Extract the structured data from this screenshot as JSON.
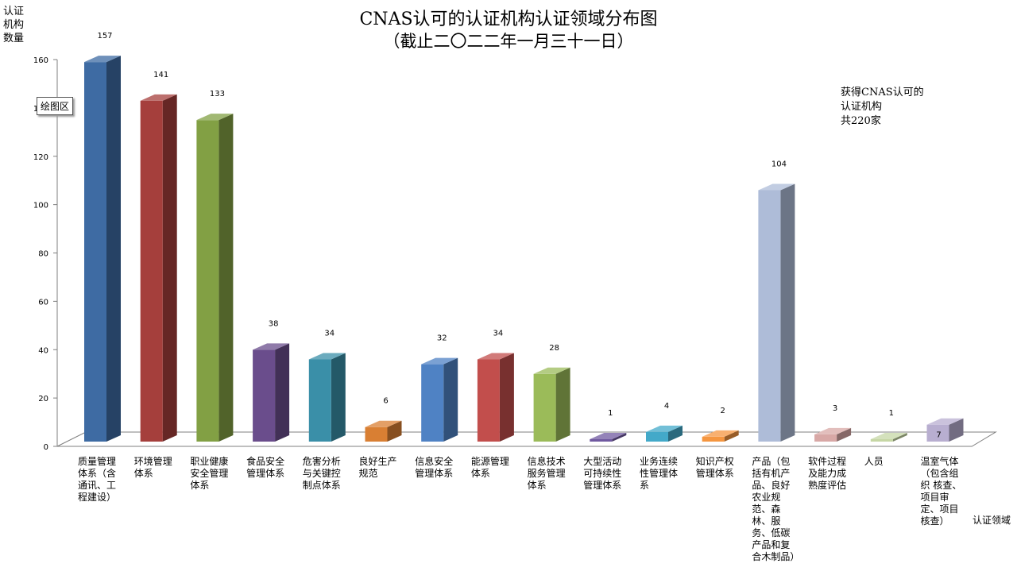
{
  "chart_data": {
    "type": "bar",
    "title": "CNAS认可的认证机构认证领域分布图",
    "subtitle": "（截止二〇二二年一月三十一日）",
    "ylabel": "认证\n机构\n数量",
    "xlabel": "认证领域",
    "ylim": [
      0,
      160
    ],
    "yticks": [
      0,
      20,
      40,
      60,
      80,
      100,
      120,
      140,
      160
    ],
    "grid": false,
    "categories": [
      "质量管理体系（含通讯、工程建设）",
      "环境管理体系",
      "职业健康安全管理体系",
      "食品安全管理体系",
      "危害分析与关键控制点体系",
      "良好生产规范",
      "信息安全管理体系",
      "能源管理体系",
      "信息技术服务管理体系",
      "大型活动可持续性管理体系",
      "业务连续性管理体系",
      "知识产权管理体系",
      "产品（包括有机产品、良好农业规范、森林、服务、低碳产品和复合木制品）",
      "软件过程及能力成熟度评估",
      "人员",
      "温室气体（包含组织 核查、项目审定、项目核查）"
    ],
    "values": [
      157,
      141,
      133,
      38,
      34,
      6,
      32,
      34,
      28,
      1,
      4,
      2,
      104,
      3,
      1,
      7
    ],
    "colors": [
      "#3e6ba3",
      "#a53f3c",
      "#82a044",
      "#6a4d8c",
      "#3a8fa8",
      "#d97f33",
      "#4f82c4",
      "#c24e4c",
      "#9bbb59",
      "#7059a0",
      "#43a9c9",
      "#f59640",
      "#aebcd8",
      "#d8a8a6",
      "#c6d7a5",
      "#b8aed0"
    ]
  },
  "plot_area_label": "绘图区",
  "note": [
    "获得CNAS认可的",
    "认证机构",
    "共220家"
  ]
}
